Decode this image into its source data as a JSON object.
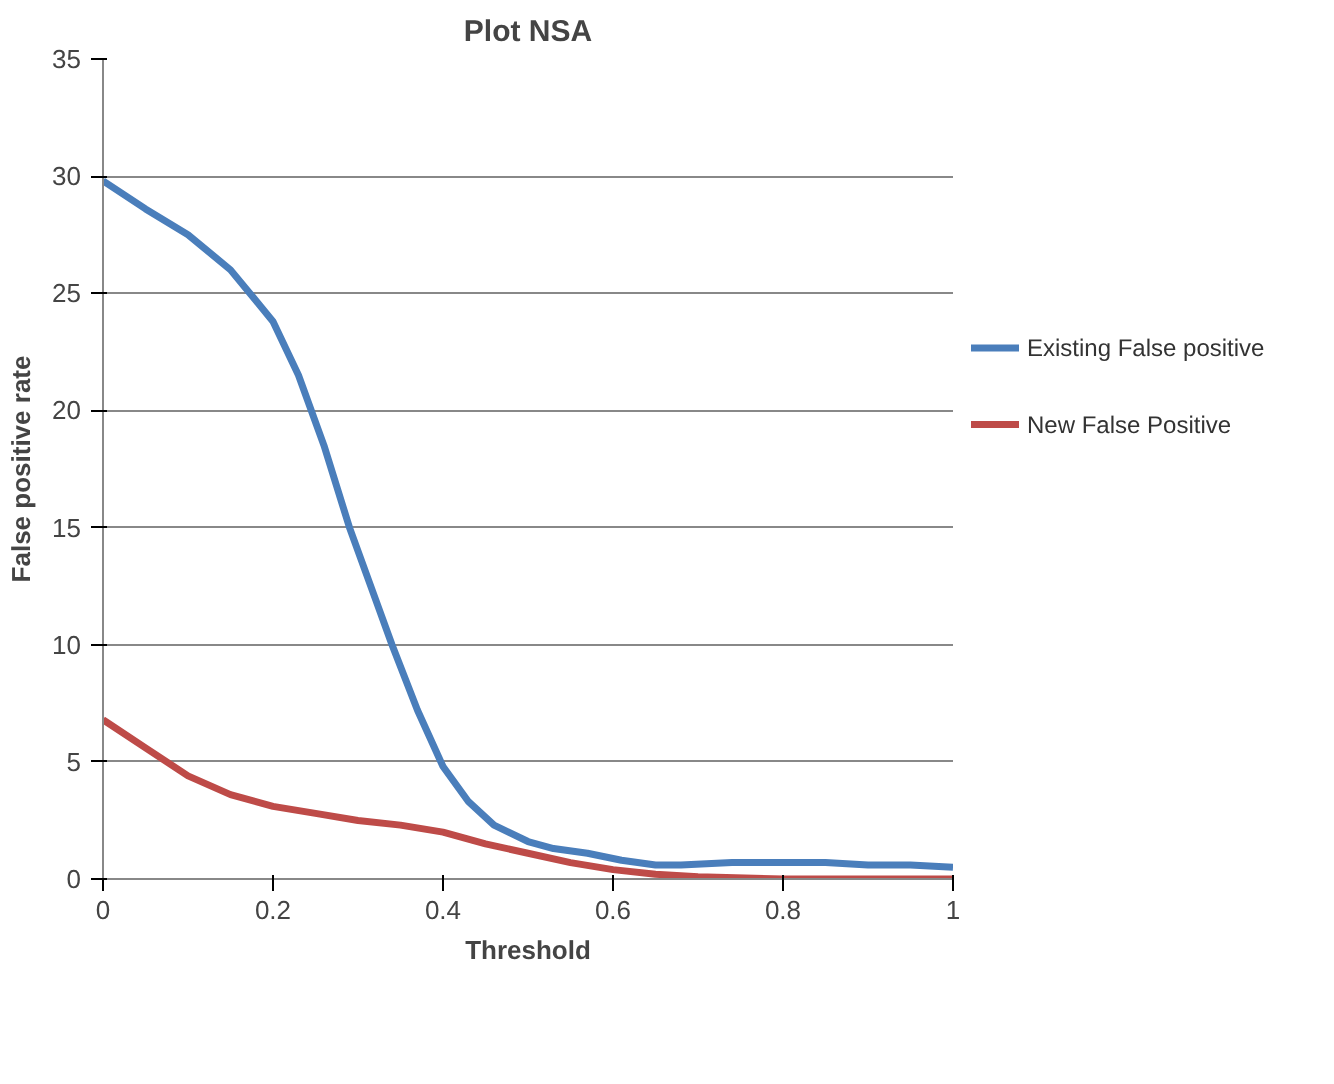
{
  "chart_data": {
    "type": "line",
    "title": "Plot NSA",
    "xlabel": "Threshold",
    "ylabel": "False positive rate",
    "xlim": [
      0,
      1
    ],
    "xticks": [
      0,
      0.2,
      0.4,
      0.6,
      0.8,
      1
    ],
    "ylim": [
      0,
      35
    ],
    "yticks": [
      0,
      5,
      10,
      15,
      20,
      25,
      30,
      35
    ],
    "grid": "y",
    "legend": "right",
    "marker": "none",
    "line_style": "solid",
    "series": [
      {
        "name": "Existing False positive",
        "color": "#4a7ebb",
        "x": [
          0,
          0.05,
          0.1,
          0.15,
          0.2,
          0.23,
          0.26,
          0.29,
          0.32,
          0.34,
          0.37,
          0.4,
          0.43,
          0.46,
          0.5,
          0.53,
          0.57,
          0.61,
          0.65,
          0.68,
          0.74,
          0.79,
          0.85,
          0.9,
          0.95,
          1
        ],
        "values": [
          29.8,
          28.6,
          27.5,
          26.0,
          23.8,
          21.5,
          18.5,
          15.0,
          12.0,
          10.0,
          7.2,
          4.8,
          3.3,
          2.3,
          1.6,
          1.3,
          1.1,
          0.8,
          0.6,
          0.6,
          0.7,
          0.7,
          0.7,
          0.6,
          0.6,
          0.5
        ]
      },
      {
        "name": "New False Positive",
        "color": "#be4b48",
        "x": [
          0,
          0.05,
          0.1,
          0.15,
          0.2,
          0.25,
          0.3,
          0.35,
          0.4,
          0.45,
          0.5,
          0.55,
          0.6,
          0.65,
          0.7,
          0.8,
          0.9,
          1
        ],
        "values": [
          6.8,
          5.6,
          4.4,
          3.6,
          3.1,
          2.8,
          2.5,
          2.3,
          2.0,
          1.5,
          1.1,
          0.7,
          0.4,
          0.2,
          0.1,
          0.0,
          0.0,
          0.0
        ]
      }
    ]
  }
}
